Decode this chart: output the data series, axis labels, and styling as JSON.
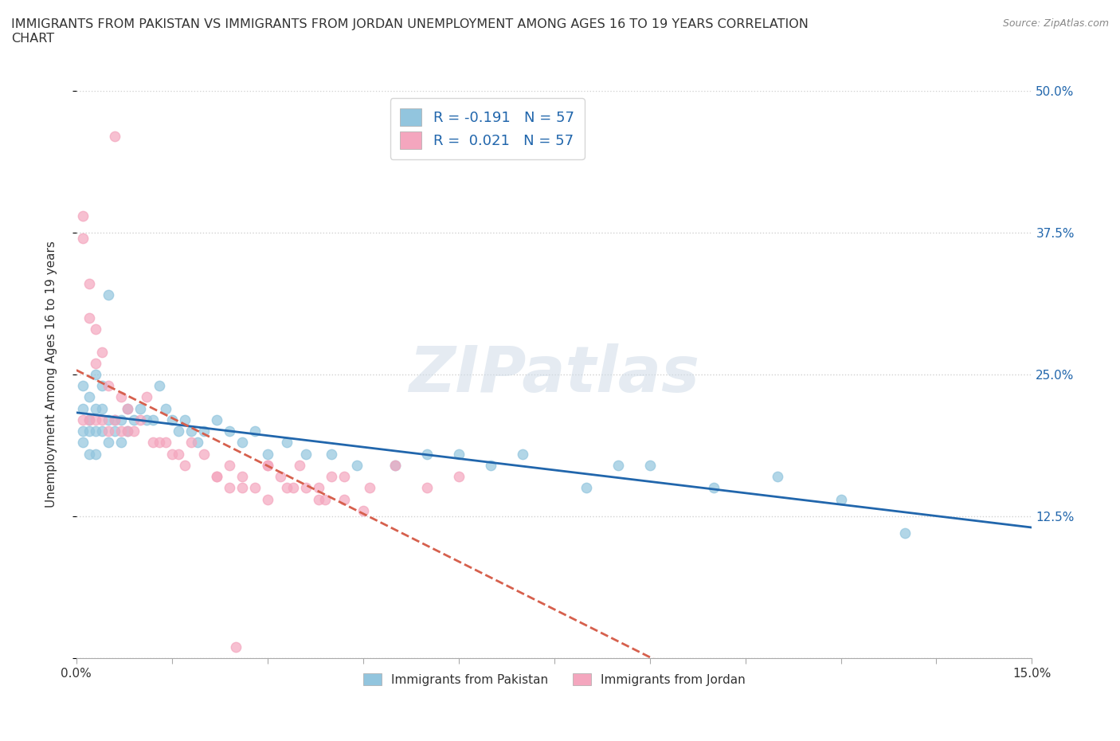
{
  "title": "IMMIGRANTS FROM PAKISTAN VS IMMIGRANTS FROM JORDAN UNEMPLOYMENT AMONG AGES 16 TO 19 YEARS CORRELATION\nCHART",
  "source": "Source: ZipAtlas.com",
  "ylabel": "Unemployment Among Ages 16 to 19 years",
  "xlim": [
    0.0,
    0.15
  ],
  "ylim": [
    0.0,
    0.5
  ],
  "xticks": [
    0.0,
    0.015,
    0.03,
    0.045,
    0.06,
    0.075,
    0.09,
    0.105,
    0.12,
    0.135,
    0.15
  ],
  "xticklabels": [
    "0.0%",
    "",
    "",
    "",
    "",
    "",
    "",
    "",
    "",
    "",
    "15.0%"
  ],
  "yticks": [
    0.0,
    0.125,
    0.25,
    0.375,
    0.5
  ],
  "yticklabels": [
    "",
    "12.5%",
    "25.0%",
    "37.5%",
    "50.0%"
  ],
  "pakistan_color": "#92c5de",
  "jordan_color": "#f4a6be",
  "pakistan_line_color": "#2166ac",
  "jordan_line_color": "#d6604d",
  "R_pakistan": -0.191,
  "N_pakistan": 57,
  "R_jordan": 0.021,
  "N_jordan": 57,
  "watermark": "ZIPatlas",
  "background_color": "#ffffff",
  "pakistan_x": [
    0.001,
    0.001,
    0.001,
    0.001,
    0.002,
    0.002,
    0.002,
    0.002,
    0.003,
    0.003,
    0.003,
    0.003,
    0.004,
    0.004,
    0.004,
    0.005,
    0.005,
    0.005,
    0.006,
    0.006,
    0.007,
    0.007,
    0.008,
    0.008,
    0.009,
    0.01,
    0.011,
    0.012,
    0.013,
    0.014,
    0.015,
    0.016,
    0.017,
    0.018,
    0.019,
    0.02,
    0.022,
    0.024,
    0.026,
    0.028,
    0.03,
    0.033,
    0.036,
    0.04,
    0.044,
    0.05,
    0.055,
    0.06,
    0.065,
    0.07,
    0.08,
    0.09,
    0.1,
    0.11,
    0.12,
    0.13,
    0.085
  ],
  "pakistan_y": [
    0.24,
    0.22,
    0.2,
    0.19,
    0.23,
    0.21,
    0.2,
    0.18,
    0.25,
    0.22,
    0.2,
    0.18,
    0.24,
    0.22,
    0.2,
    0.32,
    0.21,
    0.19,
    0.21,
    0.2,
    0.21,
    0.19,
    0.22,
    0.2,
    0.21,
    0.22,
    0.21,
    0.21,
    0.24,
    0.22,
    0.21,
    0.2,
    0.21,
    0.2,
    0.19,
    0.2,
    0.21,
    0.2,
    0.19,
    0.2,
    0.18,
    0.19,
    0.18,
    0.18,
    0.17,
    0.17,
    0.18,
    0.18,
    0.17,
    0.18,
    0.15,
    0.17,
    0.15,
    0.16,
    0.14,
    0.11,
    0.17
  ],
  "jordan_x": [
    0.001,
    0.001,
    0.001,
    0.002,
    0.002,
    0.002,
    0.003,
    0.003,
    0.003,
    0.004,
    0.004,
    0.005,
    0.005,
    0.006,
    0.006,
    0.007,
    0.007,
    0.008,
    0.008,
    0.009,
    0.01,
    0.011,
    0.012,
    0.013,
    0.014,
    0.015,
    0.016,
    0.017,
    0.018,
    0.02,
    0.022,
    0.024,
    0.026,
    0.028,
    0.03,
    0.032,
    0.035,
    0.038,
    0.04,
    0.022,
    0.024,
    0.026,
    0.03,
    0.034,
    0.038,
    0.042,
    0.046,
    0.05,
    0.055,
    0.06,
    0.03,
    0.033,
    0.036,
    0.039,
    0.042,
    0.045,
    0.025
  ],
  "jordan_y": [
    0.39,
    0.37,
    0.21,
    0.33,
    0.3,
    0.21,
    0.29,
    0.26,
    0.21,
    0.27,
    0.21,
    0.24,
    0.2,
    0.46,
    0.21,
    0.23,
    0.2,
    0.22,
    0.2,
    0.2,
    0.21,
    0.23,
    0.19,
    0.19,
    0.19,
    0.18,
    0.18,
    0.17,
    0.19,
    0.18,
    0.16,
    0.17,
    0.16,
    0.15,
    0.17,
    0.16,
    0.17,
    0.15,
    0.16,
    0.16,
    0.15,
    0.15,
    0.17,
    0.15,
    0.14,
    0.16,
    0.15,
    0.17,
    0.15,
    0.16,
    0.14,
    0.15,
    0.15,
    0.14,
    0.14,
    0.13,
    0.01
  ]
}
